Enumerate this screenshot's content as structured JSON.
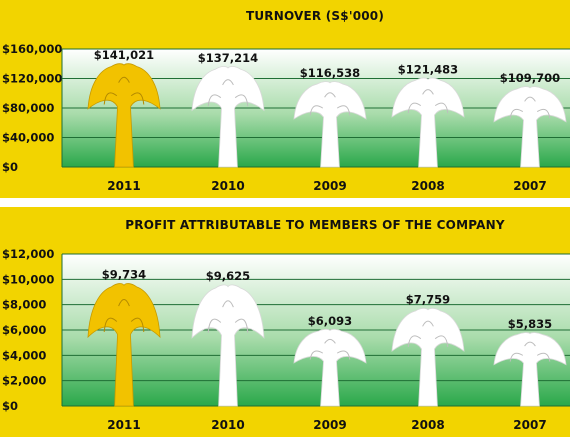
{
  "chart_data": [
    {
      "type": "bar",
      "title": "TURNOVER (S$'000)",
      "categories": [
        "2011",
        "2010",
        "2009",
        "2008",
        "2007"
      ],
      "values": [
        141021,
        137214,
        116538,
        121483,
        109700
      ],
      "value_labels": [
        "$141,021",
        "$137,214",
        "$116,538",
        "$121,483",
        "$109,700"
      ],
      "ylim": [
        0,
        160000
      ],
      "yticks": [
        0,
        40000,
        80000,
        120000,
        160000
      ],
      "ytick_labels": [
        "$0",
        "$40,000",
        "$80,000",
        "$120,000",
        "$160,000"
      ],
      "highlight_category": "2011",
      "grid": true
    },
    {
      "type": "bar",
      "title": "PROFIT ATTRIBUTABLE TO MEMBERS OF THE COMPANY",
      "categories": [
        "2011",
        "2010",
        "2009",
        "2008",
        "2007"
      ],
      "values": [
        9734,
        9625,
        6093,
        7759,
        5835
      ],
      "value_labels": [
        "$9,734",
        "$9,625",
        "$6,093",
        "$7,759",
        "$5,835"
      ],
      "ylim": [
        0,
        12000
      ],
      "yticks": [
        0,
        2000,
        4000,
        6000,
        8000,
        10000,
        12000
      ],
      "ytick_labels": [
        "$0",
        "$2,000",
        "$4,000",
        "$6,000",
        "$8,000",
        "$10,000",
        "$12,000"
      ],
      "highlight_category": "2011",
      "grid": true
    }
  ],
  "colors": {
    "panel": "#f2d400",
    "highlight": "#f2c200",
    "tree": "#ffffff",
    "plot_top": "#ffffff",
    "plot_bottom": "#2aa84a",
    "grid": "#1f6e35"
  },
  "mark_icon": "palm-tree"
}
